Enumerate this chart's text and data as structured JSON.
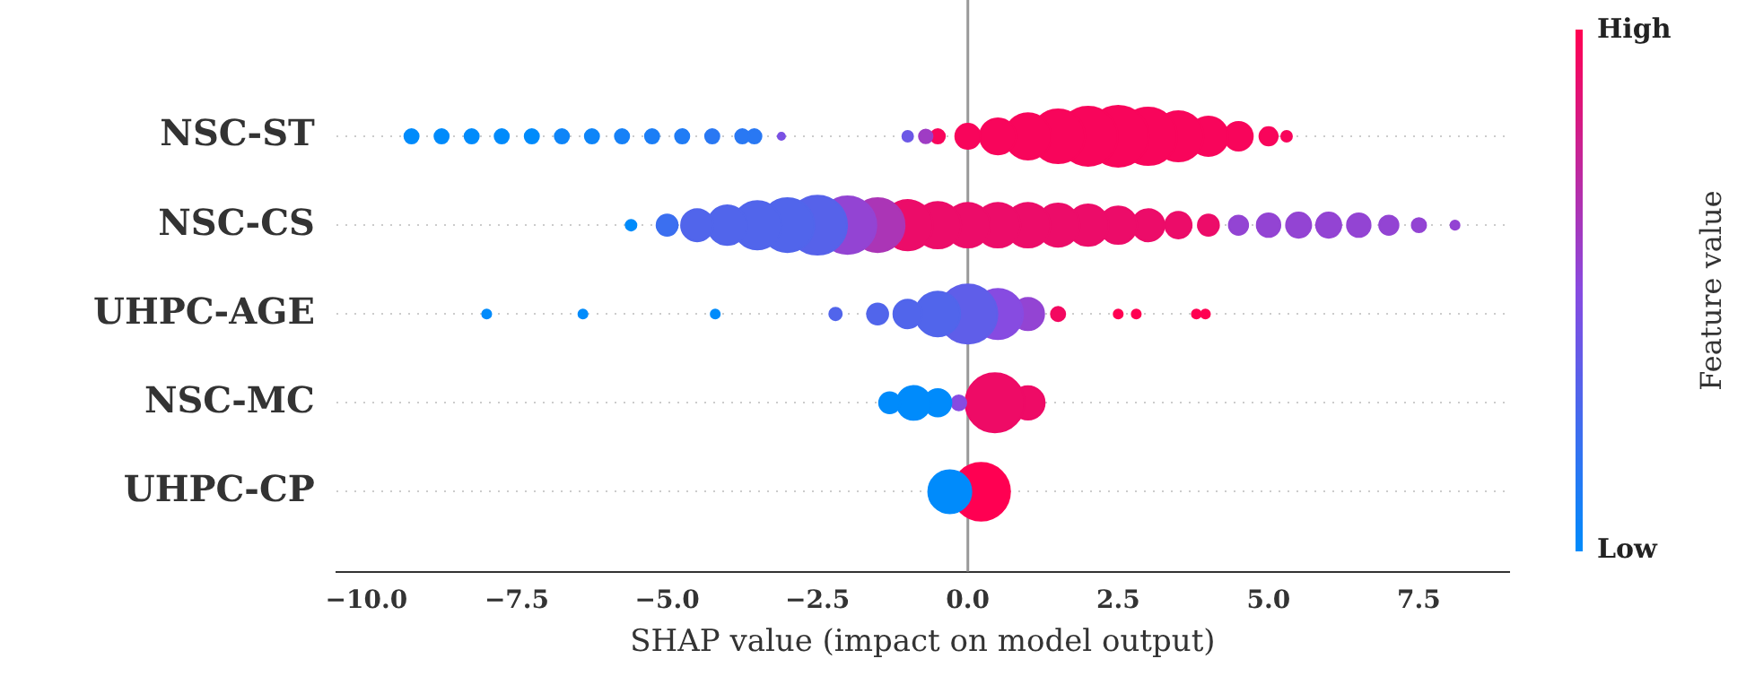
{
  "chart_data": {
    "type": "bubble",
    "orientation": "horizontal",
    "xlabel": "SHAP value (impact on model output)",
    "clabel": "Feature value",
    "clim": [
      0,
      1
    ],
    "cticks": [
      {
        "value": 0,
        "label": "Low"
      },
      {
        "value": 1,
        "label": "High"
      }
    ],
    "categories": [
      "NSC-ST",
      "NSC-CS",
      "UHPC-AGE",
      "NSC-MC",
      "UHPC-CP"
    ],
    "xlim": [
      -10.5,
      9.0
    ],
    "xticks": [
      {
        "value": -10,
        "label": "−10.0"
      },
      {
        "value": -7.5,
        "label": "−7.5"
      },
      {
        "value": -5,
        "label": "−5.0"
      },
      {
        "value": -2.5,
        "label": "−2.5"
      },
      {
        "value": 0,
        "label": "0.0"
      },
      {
        "value": 2.5,
        "label": "2.5"
      },
      {
        "value": 5,
        "label": "5.0"
      },
      {
        "value": 7.5,
        "label": "7.5"
      }
    ],
    "grid": "y",
    "ref_lines": [
      {
        "axis": "x",
        "value": 0,
        "color": "#999999"
      }
    ],
    "series": [
      {
        "values": [
          -9.25,
          -5.6,
          -8.0,
          -1.3,
          -0.3
        ],
        "sizes": [
          0.055,
          0.031,
          0.022,
          0.12,
          0.5
        ],
        "cvalues": [
          0,
          0,
          0,
          0,
          0
        ],
        "colors": [
          "#008bfb",
          "#008bfb",
          "#008bfb",
          "#008bfb",
          "#008bfb"
        ]
      },
      {
        "values": [
          -8.75,
          -5.0,
          -6.4,
          -0.9,
          0.22
        ],
        "sizes": [
          0.055,
          0.12,
          0.022,
          0.31,
          0.9
        ],
        "cvalues": [
          0,
          0.22,
          0,
          0,
          1
        ],
        "colors": [
          "#008bfb",
          "#3b6ff0",
          "#008bfb",
          "#008bfb",
          "#ff0052"
        ]
      },
      {
        "values": [
          -8.25,
          -4.5,
          -4.2,
          -0.5,
          null
        ],
        "sizes": [
          0.055,
          0.28,
          0.022,
          0.2,
          null
        ],
        "cvalues": [
          0,
          0.3,
          0,
          0,
          null
        ],
        "colors": [
          "#008bfb",
          "#5165eb",
          "#008bfb",
          "#008bfb",
          null
        ]
      },
      {
        "values": [
          -7.75,
          -4.0,
          -2.2,
          -0.15,
          null
        ],
        "sizes": [
          0.055,
          0.42,
          0.042,
          0.06,
          null
        ],
        "cvalues": [
          0,
          0.3,
          0.3,
          0.5,
          null
        ],
        "colors": [
          "#008bfb",
          "#5165eb",
          "#5165eb",
          "#874be1",
          null
        ]
      },
      {
        "values": [
          -7.25,
          -3.5,
          -1.5,
          0.45,
          null
        ],
        "sizes": [
          0.055,
          0.63,
          0.12,
          0.94,
          null
        ],
        "cvalues": [
          0,
          0.3,
          0.3,
          0.93,
          null
        ],
        "colors": [
          "#008bfb",
          "#5165eb",
          "#5165eb",
          "#ee0b66",
          null
        ]
      },
      {
        "values": [
          -6.75,
          -3.0,
          -1.0,
          1.0,
          null
        ],
        "sizes": [
          0.055,
          0.78,
          0.22,
          0.3,
          null
        ],
        "cvalues": [
          0.05,
          0.3,
          0.3,
          0.93,
          null
        ],
        "colors": [
          "#0e85f8",
          "#5165eb",
          "#5165eb",
          "#ee0b66",
          null
        ]
      },
      {
        "values": [
          -6.25,
          -2.5,
          -0.5,
          null,
          null
        ],
        "sizes": [
          0.055,
          0.94,
          0.54,
          null,
          null
        ],
        "cvalues": [
          0.05,
          0.32,
          0.3,
          null,
          null
        ],
        "colors": [
          "#0e85f8",
          "#5662ea",
          "#5165eb",
          null,
          null
        ]
      },
      {
        "values": [
          -5.75,
          -2.0,
          0,
          null,
          null
        ],
        "sizes": [
          0.055,
          0.89,
          0.94,
          null,
          null
        ],
        "cvalues": [
          0.08,
          0.55,
          0.35,
          null,
          null
        ],
        "colors": [
          "#1681f7",
          "#9344d3",
          "#5f5ee9",
          null,
          null
        ]
      },
      {
        "values": [
          -5.25,
          -1.5,
          0.5,
          null,
          null
        ],
        "sizes": [
          0.055,
          0.78,
          0.68,
          null,
          null
        ],
        "cvalues": [
          0.1,
          0.65,
          0.5,
          null,
          null
        ],
        "colors": [
          "#1b7ef6",
          "#ab35b6",
          "#874be1",
          null,
          null
        ]
      },
      {
        "values": [
          -4.75,
          -1.0,
          1.0,
          null,
          null
        ],
        "sizes": [
          0.055,
          0.68,
          0.28,
          null,
          null
        ],
        "cvalues": [
          0.12,
          0.92,
          0.55,
          null,
          null
        ],
        "colors": [
          "#207cf5",
          "#ec0c69",
          "#9344d3",
          null,
          null
        ]
      },
      {
        "values": [
          -4.25,
          -0.5,
          1.5,
          null,
          null
        ],
        "sizes": [
          0.055,
          0.58,
          0.055,
          null,
          null
        ],
        "cvalues": [
          0.15,
          0.92,
          0.95,
          null,
          null
        ],
        "colors": [
          "#2978f3",
          "#ec0c69",
          "#f30860",
          null,
          null
        ]
      },
      {
        "values": [
          -3.75,
          0,
          2.5,
          null,
          null
        ],
        "sizes": [
          0.055,
          0.54,
          0.022,
          null,
          null
        ],
        "cvalues": [
          0.15,
          0.92,
          1,
          null,
          null
        ],
        "colors": [
          "#2978f3",
          "#ec0c69",
          "#ff0052",
          null,
          null
        ]
      },
      {
        "values": [
          -3.55,
          0.5,
          2.8,
          null,
          null
        ],
        "sizes": [
          0.055,
          0.54,
          0.022,
          null,
          null
        ],
        "cvalues": [
          0.15,
          0.92,
          1,
          null,
          null
        ],
        "colors": [
          "#2978f3",
          "#ec0c69",
          "#ff0052",
          null,
          null
        ]
      },
      {
        "values": [
          -3.1,
          1.0,
          3.8,
          null,
          null
        ],
        "sizes": [
          0.014,
          0.54,
          0.022,
          null,
          null
        ],
        "cvalues": [
          0.45,
          0.92,
          1,
          null,
          null
        ],
        "colors": [
          "#7a51e4",
          "#ec0c69",
          "#ff0052",
          null,
          null
        ]
      },
      {
        "values": [
          -1.0,
          1.5,
          3.95,
          null,
          null
        ],
        "sizes": [
          0.031,
          0.5,
          0.022,
          null,
          null
        ],
        "cvalues": [
          0.4,
          0.92,
          1,
          null,
          null
        ],
        "colors": [
          "#6c58e6",
          "#ec0c69",
          "#ff0052",
          null,
          null
        ]
      },
      {
        "values": [
          -0.7,
          2.0,
          null,
          null,
          null
        ],
        "sizes": [
          0.05,
          0.46,
          null,
          null,
          null
        ],
        "cvalues": [
          0.6,
          0.92,
          null,
          null,
          null
        ],
        "colors": [
          "#9f3cc4",
          "#ec0c69",
          null,
          null,
          null
        ]
      },
      {
        "values": [
          -0.5,
          2.5,
          null,
          null,
          null
        ],
        "sizes": [
          0.055,
          0.38,
          null,
          null,
          null
        ],
        "cvalues": [
          0.97,
          0.92,
          null,
          null,
          null
        ],
        "colors": [
          "#f8055b",
          "#ec0c69",
          null,
          null,
          null
        ]
      },
      {
        "values": [
          0,
          3.0,
          null,
          null,
          null
        ],
        "sizes": [
          0.17,
          0.28,
          null,
          null,
          null
        ],
        "cvalues": [
          0.97,
          0.92,
          null,
          null,
          null
        ],
        "colors": [
          "#f8055b",
          "#ec0c69",
          null,
          null,
          null
        ]
      },
      {
        "values": [
          0.5,
          3.5,
          null,
          null,
          null
        ],
        "sizes": [
          0.35,
          0.19,
          null,
          null,
          null
        ],
        "cvalues": [
          0.97,
          0.92,
          null,
          null,
          null
        ],
        "colors": [
          "#f8055b",
          "#ec0c69",
          null,
          null,
          null
        ]
      },
      {
        "values": [
          1.0,
          4.0,
          null,
          null,
          null
        ],
        "sizes": [
          0.58,
          0.12,
          null,
          null,
          null
        ],
        "cvalues": [
          0.97,
          0.92,
          null,
          null,
          null
        ],
        "colors": [
          "#f8055b",
          "#ec0c69",
          null,
          null,
          null
        ]
      },
      {
        "values": [
          1.5,
          4.5,
          null,
          null,
          null
        ],
        "sizes": [
          0.78,
          0.1,
          null,
          null,
          null
        ],
        "cvalues": [
          0.97,
          0.55,
          null,
          null,
          null
        ],
        "colors": [
          "#f8055b",
          "#9344d3",
          null,
          null,
          null
        ]
      },
      {
        "values": [
          2.0,
          5.0,
          null,
          null,
          null
        ],
        "sizes": [
          0.94,
          0.15,
          null,
          null,
          null
        ],
        "cvalues": [
          0.97,
          0.55,
          null,
          null,
          null
        ],
        "colors": [
          "#f8055b",
          "#9344d3",
          null,
          null,
          null
        ]
      },
      {
        "values": [
          2.5,
          5.5,
          null,
          null,
          null
        ],
        "sizes": [
          1,
          0.17,
          null,
          null,
          null
        ],
        "cvalues": [
          0.97,
          0.55,
          null,
          null,
          null
        ],
        "colors": [
          "#f8055b",
          "#9344d3",
          null,
          null,
          null
        ]
      },
      {
        "values": [
          3.0,
          6.0,
          null,
          null,
          null
        ],
        "sizes": [
          0.89,
          0.17,
          null,
          null,
          null
        ],
        "cvalues": [
          0.97,
          0.55,
          null,
          null,
          null
        ],
        "colors": [
          "#f8055b",
          "#9344d3",
          null,
          null,
          null
        ]
      },
      {
        "values": [
          3.5,
          6.5,
          null,
          null,
          null
        ],
        "sizes": [
          0.68,
          0.15,
          null,
          null,
          null
        ],
        "cvalues": [
          0.97,
          0.55,
          null,
          null,
          null
        ],
        "colors": [
          "#f8055b",
          "#9344d3",
          null,
          null,
          null
        ]
      },
      {
        "values": [
          4.0,
          7.0,
          null,
          null,
          null
        ],
        "sizes": [
          0.42,
          0.1,
          null,
          null,
          null
        ],
        "cvalues": [
          0.97,
          0.55,
          null,
          null,
          null
        ],
        "colors": [
          "#f8055b",
          "#9344d3",
          null,
          null,
          null
        ]
      },
      {
        "values": [
          4.5,
          7.5,
          null,
          null,
          null
        ],
        "sizes": [
          0.22,
          0.055,
          null,
          null,
          null
        ],
        "cvalues": [
          0.97,
          0.55,
          null,
          null,
          null
        ],
        "colors": [
          "#f8055b",
          "#9344d3",
          null,
          null,
          null
        ]
      },
      {
        "values": [
          5.0,
          8.1,
          null,
          null,
          null
        ],
        "sizes": [
          0.09,
          0.022,
          null,
          null,
          null
        ],
        "cvalues": [
          0.97,
          0.55,
          null,
          null,
          null
        ],
        "colors": [
          "#f8055b",
          "#9344d3",
          null,
          null,
          null
        ]
      },
      {
        "values": [
          5.3,
          null,
          null,
          null,
          null
        ],
        "sizes": [
          0.031,
          null,
          null,
          null,
          null
        ],
        "cvalues": [
          0.97,
          null,
          null,
          null,
          null
        ],
        "colors": [
          "#f8055b",
          null,
          null,
          null,
          null
        ]
      }
    ]
  }
}
